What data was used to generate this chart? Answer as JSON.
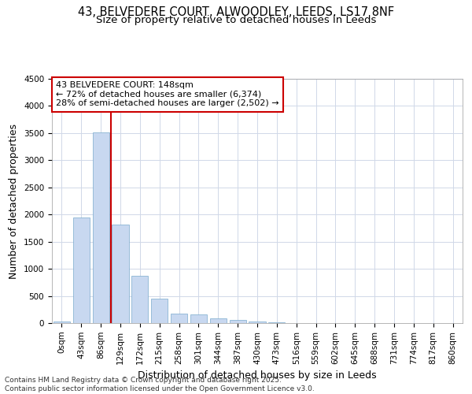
{
  "title_line1": "43, BELVEDERE COURT, ALWOODLEY, LEEDS, LS17 8NF",
  "title_line2": "Size of property relative to detached houses in Leeds",
  "xlabel": "Distribution of detached houses by size in Leeds",
  "ylabel": "Number of detached properties",
  "annotation_line1": "43 BELVEDERE COURT: 148sqm",
  "annotation_line2": "← 72% of detached houses are smaller (6,374)",
  "annotation_line3": "28% of semi-detached houses are larger (2,502) →",
  "footer_line1": "Contains HM Land Registry data © Crown copyright and database right 2025.",
  "footer_line2": "Contains public sector information licensed under the Open Government Licence v3.0.",
  "bar_color": "#c8d8f0",
  "bar_edge_color": "#7aaacc",
  "vline_color": "#cc0000",
  "background_color": "#ffffff",
  "grid_color": "#d0d8e8",
  "annotation_box_color": "#cc0000",
  "annotation_box_bg": "#ffffff",
  "categories": [
    "0sqm",
    "43sqm",
    "86sqm",
    "129sqm",
    "172sqm",
    "215sqm",
    "258sqm",
    "301sqm",
    "344sqm",
    "387sqm",
    "430sqm",
    "473sqm",
    "516sqm",
    "559sqm",
    "602sqm",
    "645sqm",
    "688sqm",
    "731sqm",
    "774sqm",
    "817sqm",
    "860sqm"
  ],
  "values": [
    25,
    1950,
    3520,
    1810,
    865,
    450,
    175,
    165,
    90,
    55,
    30,
    20,
    5,
    3,
    2,
    2,
    2,
    1,
    1,
    1,
    1
  ],
  "vline_position": 2.5,
  "ylim": [
    0,
    4500
  ],
  "yticks": [
    0,
    500,
    1000,
    1500,
    2000,
    2500,
    3000,
    3500,
    4000,
    4500
  ],
  "title_fontsize": 10.5,
  "subtitle_fontsize": 9.5,
  "axis_label_fontsize": 9,
  "tick_fontsize": 7.5,
  "annotation_fontsize": 8,
  "footer_fontsize": 6.5
}
